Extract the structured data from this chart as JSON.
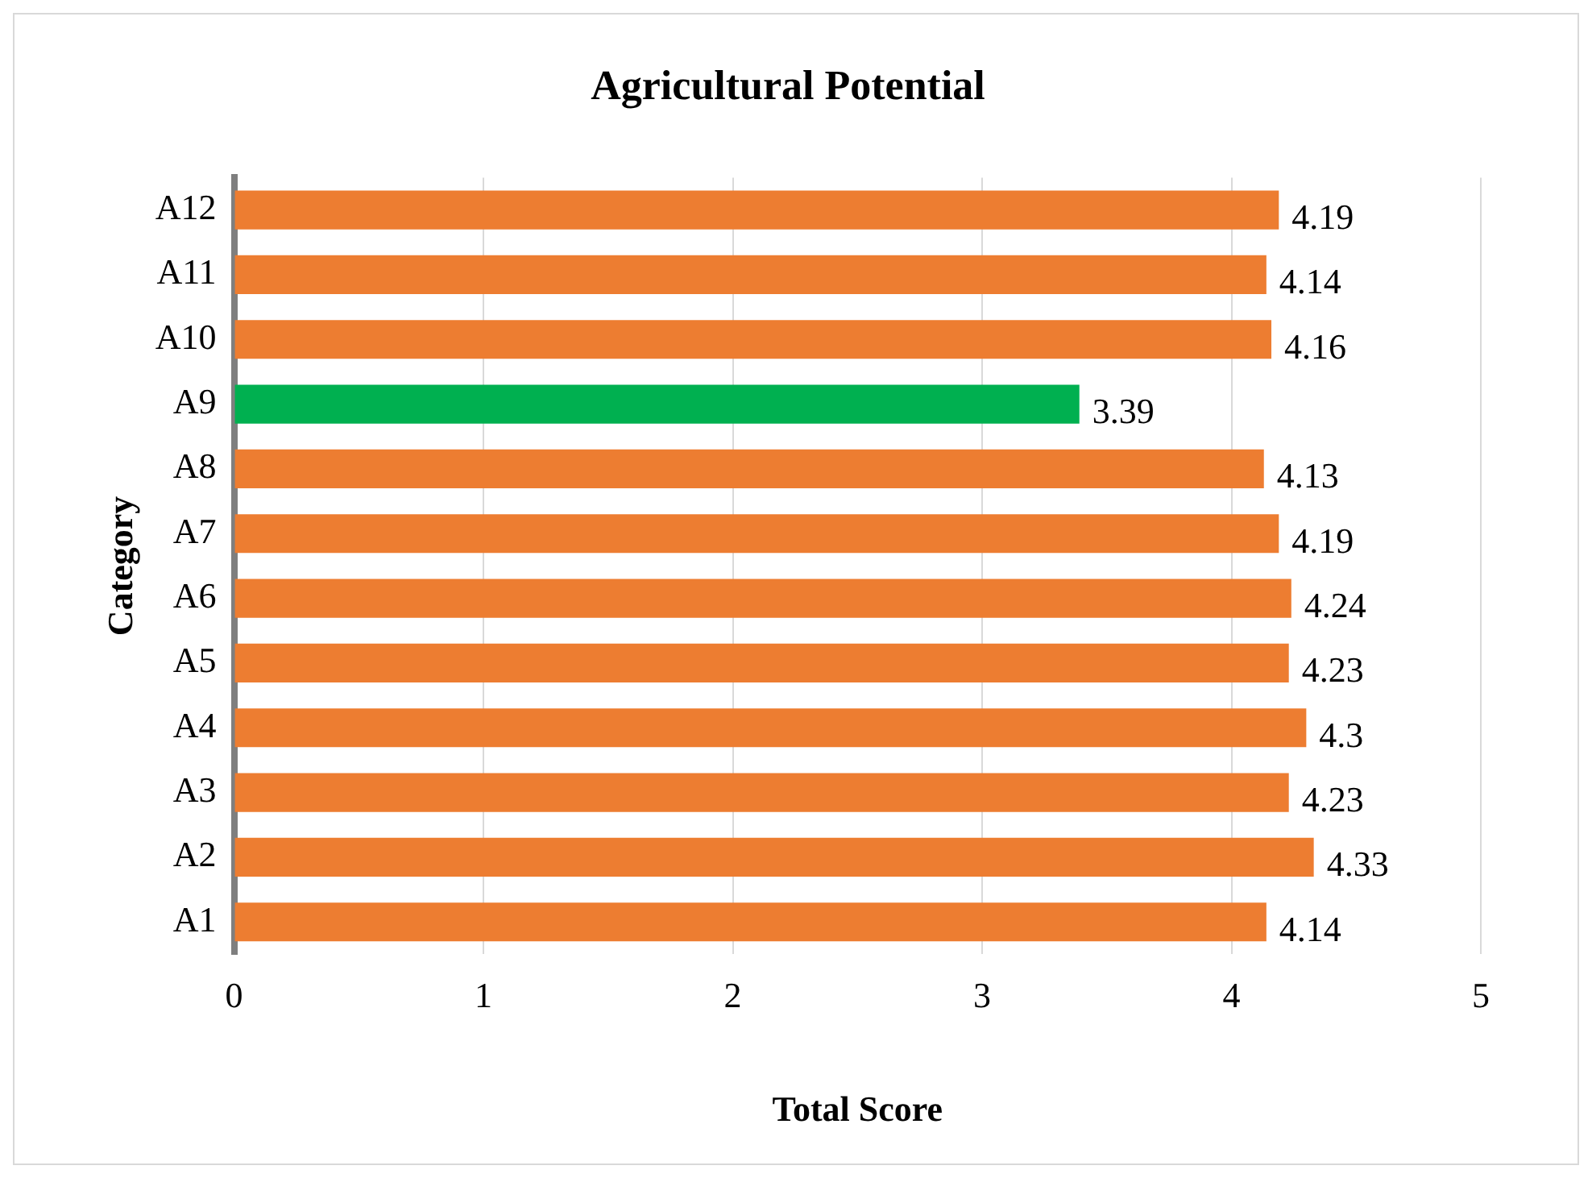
{
  "chart_data": {
    "type": "bar",
    "orientation": "horizontal",
    "title": "Agricultural Potential",
    "xlabel": "Total Score",
    "ylabel": "Category",
    "categories": [
      "A12",
      "A11",
      "A10",
      "A9",
      "A8",
      "A7",
      "A6",
      "A5",
      "A4",
      "A3",
      "A2",
      "A1"
    ],
    "values": [
      4.19,
      4.14,
      4.16,
      3.39,
      4.13,
      4.19,
      4.24,
      4.23,
      4.3,
      4.23,
      4.33,
      4.14
    ],
    "colors": [
      "#ed7d31",
      "#ed7d31",
      "#ed7d31",
      "#00b050",
      "#ed7d31",
      "#ed7d31",
      "#ed7d31",
      "#ed7d31",
      "#ed7d31",
      "#ed7d31",
      "#ed7d31",
      "#ed7d31"
    ],
    "xlim": [
      0,
      5
    ],
    "xticks": [
      0,
      1,
      2,
      3,
      4,
      5
    ],
    "grid": "x",
    "legend": false,
    "data_labels": true
  }
}
